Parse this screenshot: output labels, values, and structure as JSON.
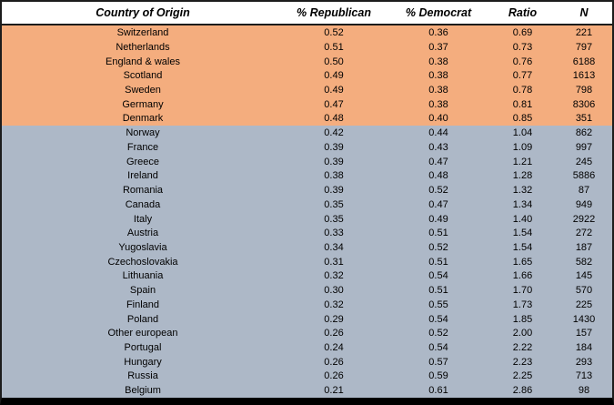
{
  "chart_data": {
    "type": "table",
    "columns": [
      "Country of Origin",
      "% Republican",
      "% Democrat",
      "Ratio",
      "N"
    ],
    "rows": [
      {
        "country": "Switzerland",
        "pct_republican": "0.52",
        "pct_democrat": "0.36",
        "ratio": "0.69",
        "n": "221",
        "highlight": "orange"
      },
      {
        "country": "Netherlands",
        "pct_republican": "0.51",
        "pct_democrat": "0.37",
        "ratio": "0.73",
        "n": "797",
        "highlight": "orange"
      },
      {
        "country": "England & wales",
        "pct_republican": "0.50",
        "pct_democrat": "0.38",
        "ratio": "0.76",
        "n": "6188",
        "highlight": "orange"
      },
      {
        "country": "Scotland",
        "pct_republican": "0.49",
        "pct_democrat": "0.38",
        "ratio": "0.77",
        "n": "1613",
        "highlight": "orange"
      },
      {
        "country": "Sweden",
        "pct_republican": "0.49",
        "pct_democrat": "0.38",
        "ratio": "0.78",
        "n": "798",
        "highlight": "orange"
      },
      {
        "country": "Germany",
        "pct_republican": "0.47",
        "pct_democrat": "0.38",
        "ratio": "0.81",
        "n": "8306",
        "highlight": "orange"
      },
      {
        "country": "Denmark",
        "pct_republican": "0.48",
        "pct_democrat": "0.40",
        "ratio": "0.85",
        "n": "351",
        "highlight": "orange"
      },
      {
        "country": "Norway",
        "pct_republican": "0.42",
        "pct_democrat": "0.44",
        "ratio": "1.04",
        "n": "862",
        "highlight": "blue"
      },
      {
        "country": "France",
        "pct_republican": "0.39",
        "pct_democrat": "0.43",
        "ratio": "1.09",
        "n": "997",
        "highlight": "blue"
      },
      {
        "country": "Greece",
        "pct_republican": "0.39",
        "pct_democrat": "0.47",
        "ratio": "1.21",
        "n": "245",
        "highlight": "blue"
      },
      {
        "country": "Ireland",
        "pct_republican": "0.38",
        "pct_democrat": "0.48",
        "ratio": "1.28",
        "n": "5886",
        "highlight": "blue"
      },
      {
        "country": "Romania",
        "pct_republican": "0.39",
        "pct_democrat": "0.52",
        "ratio": "1.32",
        "n": "87",
        "highlight": "blue"
      },
      {
        "country": "Canada",
        "pct_republican": "0.35",
        "pct_democrat": "0.47",
        "ratio": "1.34",
        "n": "949",
        "highlight": "blue"
      },
      {
        "country": "Italy",
        "pct_republican": "0.35",
        "pct_democrat": "0.49",
        "ratio": "1.40",
        "n": "2922",
        "highlight": "blue"
      },
      {
        "country": "Austria",
        "pct_republican": "0.33",
        "pct_democrat": "0.51",
        "ratio": "1.54",
        "n": "272",
        "highlight": "blue"
      },
      {
        "country": "Yugoslavia",
        "pct_republican": "0.34",
        "pct_democrat": "0.52",
        "ratio": "1.54",
        "n": "187",
        "highlight": "blue"
      },
      {
        "country": "Czechoslovakia",
        "pct_republican": "0.31",
        "pct_democrat": "0.51",
        "ratio": "1.65",
        "n": "582",
        "highlight": "blue"
      },
      {
        "country": "Lithuania",
        "pct_republican": "0.32",
        "pct_democrat": "0.54",
        "ratio": "1.66",
        "n": "145",
        "highlight": "blue"
      },
      {
        "country": "Spain",
        "pct_republican": "0.30",
        "pct_democrat": "0.51",
        "ratio": "1.70",
        "n": "570",
        "highlight": "blue"
      },
      {
        "country": "Finland",
        "pct_republican": "0.32",
        "pct_democrat": "0.55",
        "ratio": "1.73",
        "n": "225",
        "highlight": "blue"
      },
      {
        "country": "Poland",
        "pct_republican": "0.29",
        "pct_democrat": "0.54",
        "ratio": "1.85",
        "n": "1430",
        "highlight": "blue"
      },
      {
        "country": "Other european",
        "pct_republican": "0.26",
        "pct_democrat": "0.52",
        "ratio": "2.00",
        "n": "157",
        "highlight": "blue"
      },
      {
        "country": "Portugal",
        "pct_republican": "0.24",
        "pct_democrat": "0.54",
        "ratio": "2.22",
        "n": "184",
        "highlight": "blue"
      },
      {
        "country": "Hungary",
        "pct_republican": "0.26",
        "pct_democrat": "0.57",
        "ratio": "2.23",
        "n": "293",
        "highlight": "blue"
      },
      {
        "country": "Russia",
        "pct_republican": "0.26",
        "pct_democrat": "0.59",
        "ratio": "2.25",
        "n": "713",
        "highlight": "blue"
      },
      {
        "country": "Belgium",
        "pct_republican": "0.21",
        "pct_democrat": "0.61",
        "ratio": "2.86",
        "n": "98",
        "highlight": "blue"
      }
    ]
  },
  "colors": {
    "orange_band": "#F4AD7E",
    "blue_band": "#ADB8C7",
    "header_bg": "#FFFFFF",
    "border": "#000000"
  }
}
